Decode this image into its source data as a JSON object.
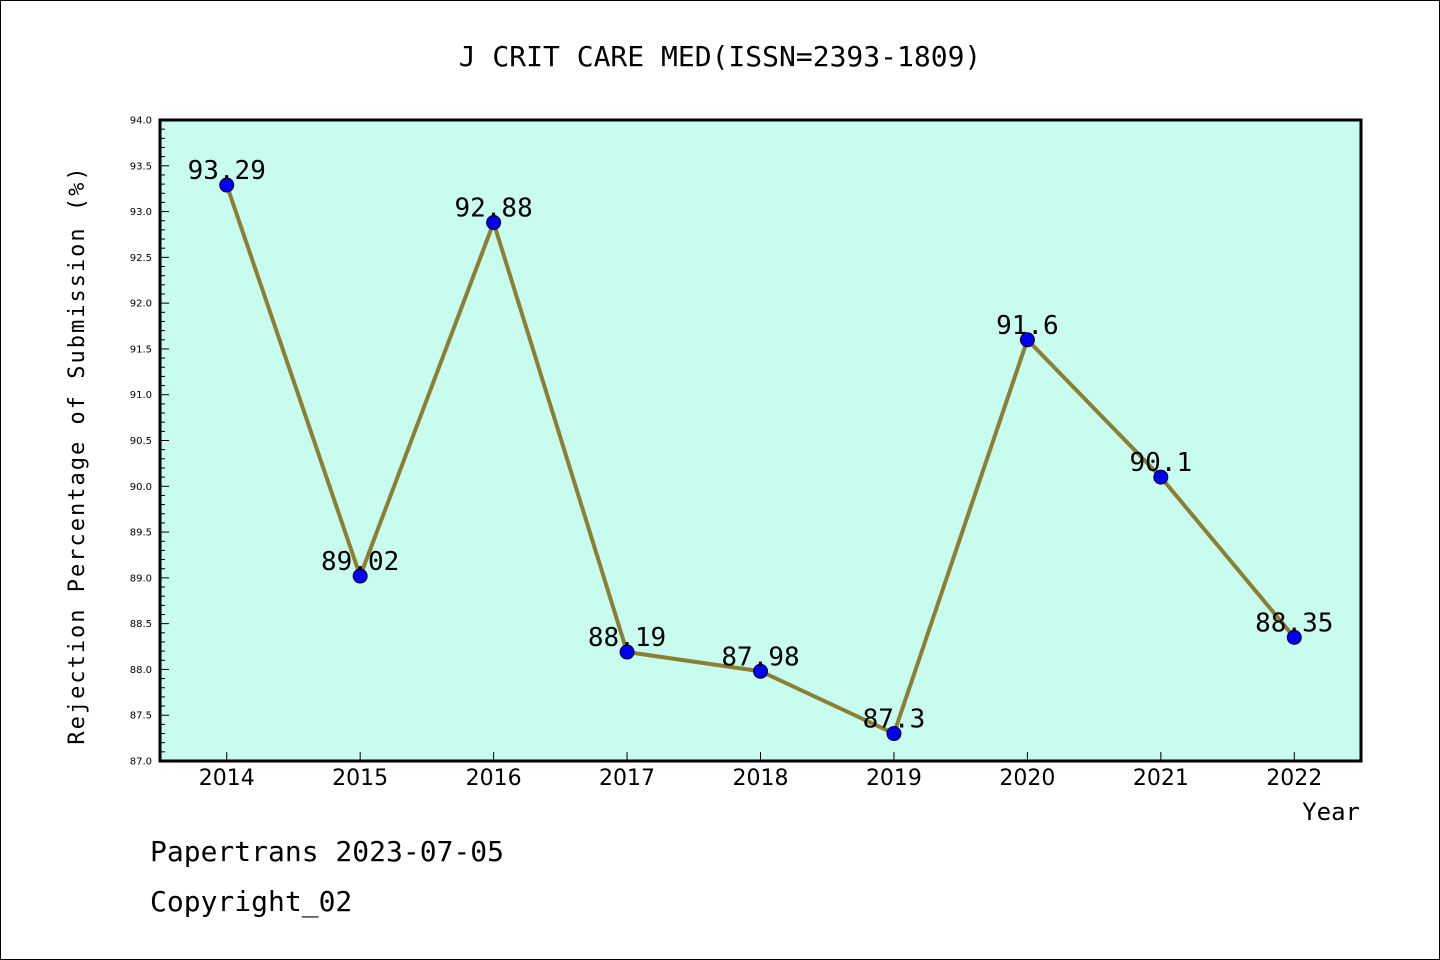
{
  "chart_data": {
    "type": "line",
    "title": "J CRIT CARE MED(ISSN=2393-1809)",
    "xlabel": "Year",
    "ylabel": "Rejection Percentage of Submission (%)",
    "categories": [
      "2014",
      "2015",
      "2016",
      "2017",
      "2018",
      "2019",
      "2020",
      "2021",
      "2022"
    ],
    "values": [
      93.29,
      89.02,
      92.88,
      88.19,
      87.98,
      87.3,
      91.6,
      90.1,
      88.35
    ],
    "data_labels": [
      "93.29",
      "89.02",
      "92.88",
      "88.19",
      "87.98",
      "87.3",
      "91.6",
      "90.1",
      "88.35"
    ],
    "ylim": [
      87.0,
      94.0
    ],
    "yticks": [
      "87.0",
      "87.5",
      "88.0",
      "88.5",
      "89.0",
      "89.5",
      "90.0",
      "90.5",
      "91.0",
      "91.5",
      "92.0",
      "92.5",
      "93.0",
      "93.5",
      "94.0"
    ],
    "grid": false,
    "colors": {
      "plot_background": "#c8fcee",
      "line": "#8b8032",
      "marker": "#0000ee",
      "axes": "#000000"
    }
  },
  "footer": {
    "credit": "Papertrans 2023-07-05",
    "copyright": "Copyright_02"
  }
}
